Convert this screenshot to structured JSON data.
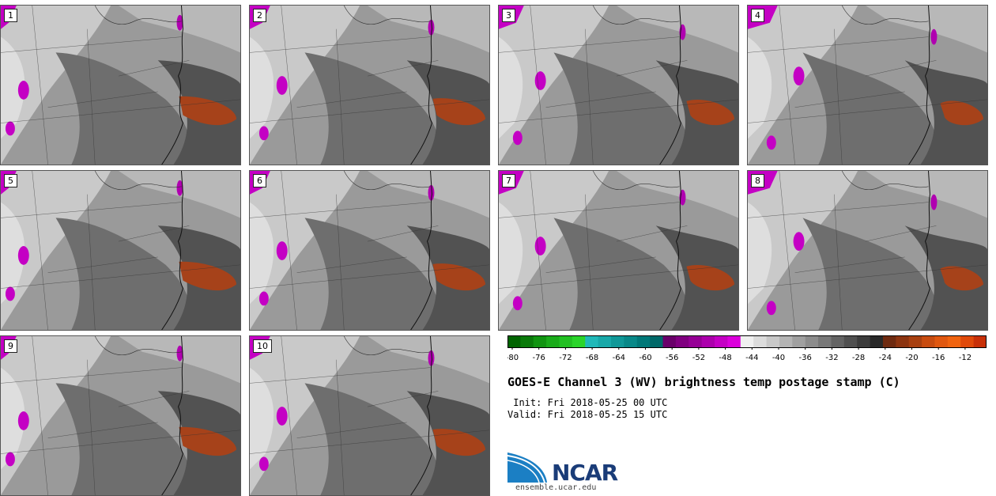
{
  "panels": [
    {
      "label": "1"
    },
    {
      "label": "2"
    },
    {
      "label": "3"
    },
    {
      "label": "4"
    },
    {
      "label": "5"
    },
    {
      "label": "6"
    },
    {
      "label": "7"
    },
    {
      "label": "8"
    },
    {
      "label": "9"
    },
    {
      "label": "10"
    }
  ],
  "colorbar": {
    "ticks": [
      "-80",
      "-76",
      "-72",
      "-68",
      "-64",
      "-60",
      "-56",
      "-52",
      "-48",
      "-44",
      "-40",
      "-36",
      "-32",
      "-28",
      "-24",
      "-20",
      "-16",
      "-12"
    ],
    "colors": [
      "#006400",
      "#0a7a0a",
      "#119411",
      "#1aab1a",
      "#22c022",
      "#2ad42a",
      "#20b8b8",
      "#18a8a8",
      "#109898",
      "#088888",
      "#007878",
      "#006868",
      "#6a006a",
      "#800080",
      "#960096",
      "#ac00ac",
      "#c400c4",
      "#dc00dc",
      "#f0f0f0",
      "#dcdcdc",
      "#c8c8c8",
      "#b4b4b4",
      "#a0a0a0",
      "#8c8c8c",
      "#787878",
      "#646464",
      "#505050",
      "#3c3c3c",
      "#282828",
      "#6e2a10",
      "#8c3410",
      "#a84010",
      "#c84c10",
      "#e05810",
      "#f06410",
      "#e04a0a",
      "#c83008"
    ]
  },
  "title": "GOES-E Channel 3 (WV) brightness temp postage stamp (C)",
  "init": " Init: Fri 2018-05-25 00 UTC",
  "valid": "Valid: Fri 2018-05-25 15 UTC",
  "logo": {
    "word": "NCAR",
    "url": "ensemble.ucar.edu"
  }
}
